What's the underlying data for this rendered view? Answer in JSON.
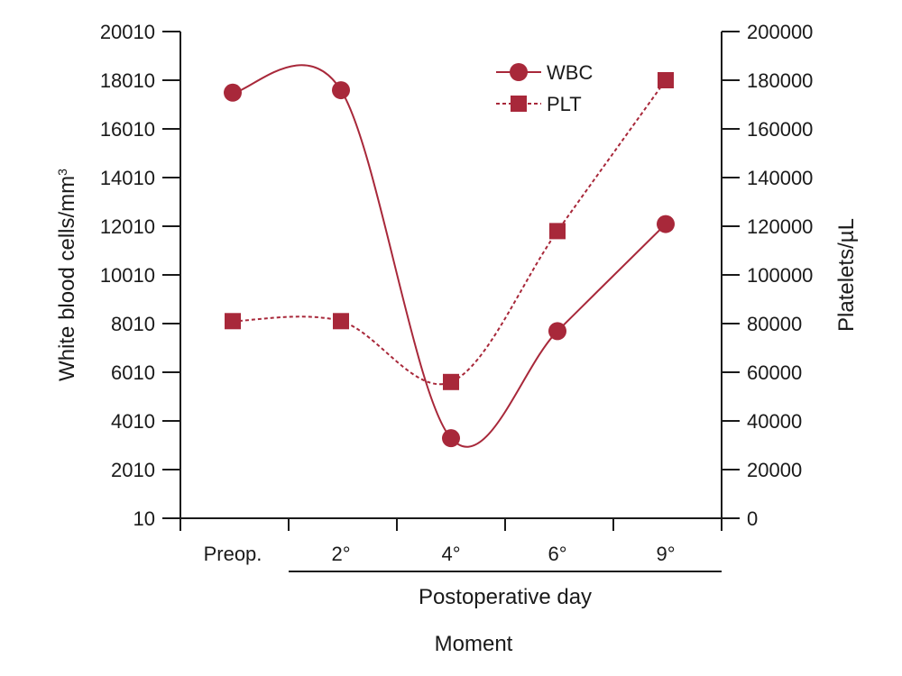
{
  "colors": {
    "series": "#a8283a",
    "axis": "#1a1a1a"
  },
  "chart_data": {
    "type": "line",
    "categories": [
      "Preop.",
      "2°",
      "4°",
      "6°",
      "9°"
    ],
    "xlabel": "Postoperative day",
    "xlabel_secondary": "Moment",
    "y_left": {
      "label_main": "White blood cells/mm",
      "label_sup": "3",
      "ylim": [
        10,
        20010
      ],
      "ticks": [
        10,
        2010,
        4010,
        6010,
        8010,
        10010,
        12010,
        14010,
        16010,
        18010,
        20010
      ]
    },
    "y_right": {
      "label": "Platelets/µL",
      "ylim": [
        0,
        200000
      ],
      "ticks": [
        0,
        20000,
        40000,
        60000,
        80000,
        100000,
        120000,
        140000,
        160000,
        180000,
        200000
      ]
    },
    "series": [
      {
        "name": "WBC",
        "axis": "left",
        "marker": "circle",
        "style": "solid",
        "values": [
          17500,
          17600,
          3300,
          7700,
          12100
        ]
      },
      {
        "name": "PLT",
        "axis": "right",
        "marker": "square",
        "style": "dashed",
        "values": [
          81000,
          81000,
          56000,
          118000,
          180000
        ]
      }
    ],
    "legend": "top-right",
    "grid": false
  }
}
